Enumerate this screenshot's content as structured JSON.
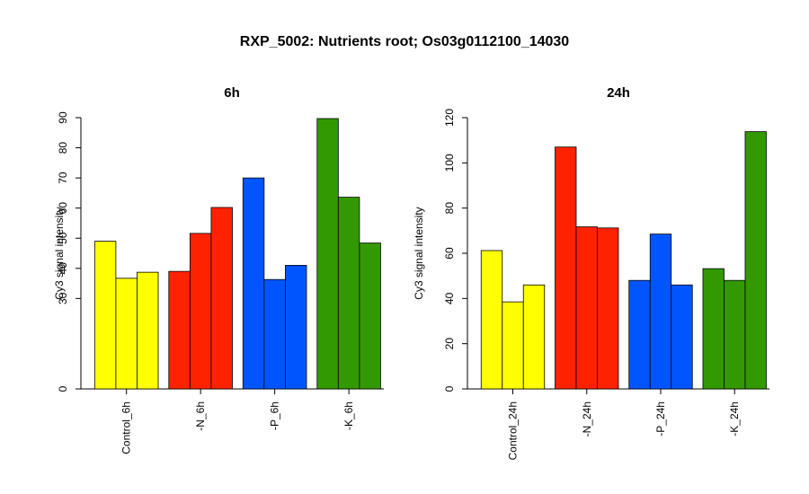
{
  "title": "RXP_5002: Nutrients root; Os03g0112100_14030",
  "colors": {
    "control": "#ffff00",
    "N": "#ff2200",
    "P": "#0055ff",
    "K": "#339900"
  },
  "chart_data": [
    {
      "type": "bar",
      "title": "6h",
      "ylabel": "Cy3 signal intensity",
      "ylim": [
        0,
        90
      ],
      "yticks": [
        0,
        30,
        40,
        50,
        60,
        70,
        80,
        90
      ],
      "categories": [
        "Control_6h",
        "-N_6h",
        "-P_6h",
        "-K_6h"
      ],
      "values": [
        [
          49,
          36.7,
          38.7
        ],
        [
          39,
          51.6,
          60.2
        ],
        [
          70,
          36.3,
          41
        ],
        [
          89.7,
          63.6,
          48.4
        ]
      ]
    },
    {
      "type": "bar",
      "title": "24h",
      "ylabel": "Cy3 signal intensity",
      "ylim": [
        0,
        120
      ],
      "yticks": [
        0,
        20,
        40,
        60,
        80,
        100,
        120
      ],
      "categories": [
        "Control_24h",
        "-N_24h",
        "-P_24h",
        "-K_24h"
      ],
      "values": [
        [
          61.2,
          38.5,
          46
        ],
        [
          107,
          71.7,
          71.2
        ],
        [
          48,
          68.5,
          46
        ],
        [
          53.2,
          48,
          113.8
        ]
      ]
    }
  ]
}
